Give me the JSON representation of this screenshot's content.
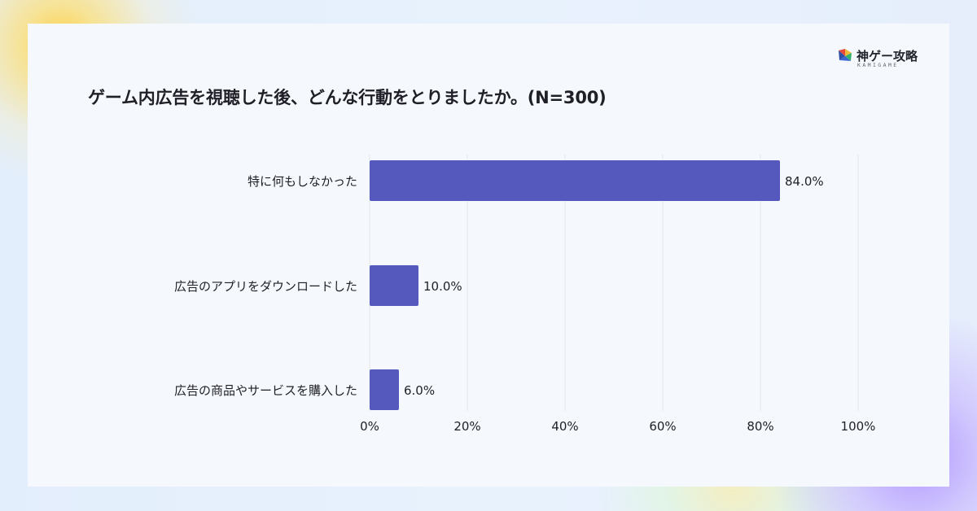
{
  "brand": {
    "logo_text": "神ゲー攻略",
    "logo_subtext": "KAMIGAME",
    "colors": [
      "#E8493D",
      "#F1B83C",
      "#34B16F",
      "#3C66D2"
    ]
  },
  "title": "ゲーム内広告を視聴した後、どんな行動をとりましたか。(N=300)",
  "chart_data": {
    "type": "bar",
    "orientation": "horizontal",
    "categories": [
      "特に何もしなかった",
      "広告のアプリをダウンロードした",
      "広告の商品やサービスを購入した"
    ],
    "values": [
      84.0,
      10.0,
      6.0
    ],
    "value_labels": [
      "84.0%",
      "10.0%",
      "6.0%"
    ],
    "x_ticks": [
      0,
      20,
      40,
      60,
      80,
      100
    ],
    "x_tick_labels": [
      "0%",
      "20%",
      "40%",
      "60%",
      "80%",
      "100%"
    ],
    "xlim": [
      0,
      100
    ],
    "grid": true,
    "bar_color": "#5558BC"
  }
}
